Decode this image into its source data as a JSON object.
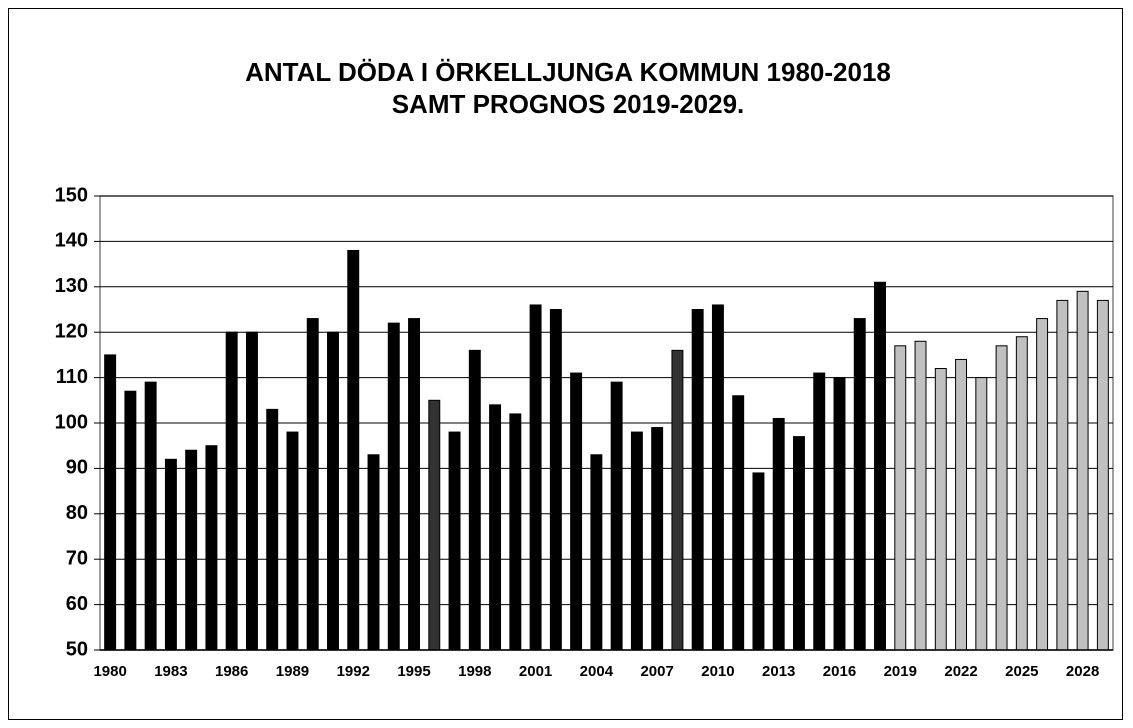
{
  "chart_data": {
    "type": "bar",
    "title": "ANTAL DÖDA I ÖRKELLJUNGA KOMMUN 1980-2018",
    "subtitle": "SAMT PROGNOS 2019-2029.",
    "categories": [
      "1980",
      null,
      null,
      "1983",
      null,
      null,
      "1986",
      null,
      null,
      "1989",
      null,
      null,
      "1992",
      null,
      null,
      "1995",
      null,
      null,
      "1998",
      null,
      null,
      "2001",
      null,
      null,
      "2004",
      null,
      null,
      "2007",
      null,
      null,
      "2010",
      null,
      null,
      "2013",
      null,
      null,
      "2016",
      null,
      null,
      "2019",
      null,
      null,
      "2022",
      null,
      null,
      "2025",
      null,
      null,
      "2028",
      null
    ],
    "values": [
      115,
      107,
      109,
      92,
      94,
      95,
      120,
      120,
      103,
      98,
      123,
      120,
      138,
      93,
      122,
      123,
      105,
      98,
      116,
      104,
      102,
      126,
      125,
      111,
      93,
      109,
      98,
      99,
      116,
      125,
      126,
      106,
      89,
      101,
      97,
      111,
      110,
      123,
      131,
      117,
      118,
      112,
      114,
      110,
      117,
      119,
      123,
      127,
      129,
      127
    ],
    "colors": [
      "#000000",
      "#000000",
      "#000000",
      "#000000",
      "#000000",
      "#000000",
      "#000000",
      "#000000",
      "#000000",
      "#000000",
      "#000000",
      "#000000",
      "#000000",
      "#000000",
      "#000000",
      "#000000",
      "#333333",
      "#000000",
      "#000000",
      "#000000",
      "#000000",
      "#000000",
      "#000000",
      "#000000",
      "#000000",
      "#000000",
      "#000000",
      "#000000",
      "#333333",
      "#000000",
      "#000000",
      "#000000",
      "#000000",
      "#000000",
      "#000000",
      "#000000",
      "#000000",
      "#000000",
      "#000000",
      "#c0c0c0",
      "#c0c0c0",
      "#c0c0c0",
      "#c0c0c0",
      "#c0c0c0",
      "#c0c0c0",
      "#c0c0c0",
      "#c0c0c0",
      "#c0c0c0",
      "#c0c0c0",
      "#c0c0c0"
    ],
    "ylim": [
      50,
      150
    ],
    "yticks": [
      50,
      60,
      70,
      80,
      90,
      100,
      110,
      120,
      130,
      140,
      150
    ],
    "grid": true
  }
}
